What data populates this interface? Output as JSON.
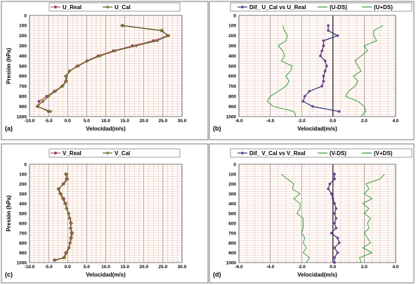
{
  "colors": {
    "background": "#ffffff",
    "border": "#555555",
    "grid": "#e8b4a0",
    "real": "#c0504d",
    "cal": "#4f6228",
    "dif_line": "#1f3a7a",
    "dif_marker": "#7b3f8a",
    "ds": "#3a9a3a",
    "zero_line": "#000000"
  },
  "chart_data": [
    {
      "id": "a",
      "type": "line",
      "panel_label": "(a)",
      "xlabel": "Velocidad(m/s)",
      "ylabel": "Presión (hPa)",
      "xlim": [
        -10,
        30
      ],
      "ylim": [
        0,
        1000
      ],
      "y_inverted": true,
      "x_ticks": [
        "-10.0",
        "-5.0",
        "0.0",
        "5.0",
        "10.0",
        "15.0",
        "20.0",
        "25.0",
        "30.0"
      ],
      "y_ticks": [
        "0",
        "100",
        "200",
        "300",
        "400",
        "500",
        "600",
        "700",
        "800",
        "900",
        "1000"
      ],
      "grid": true,
      "legend_position": "top",
      "series": [
        {
          "name": "U_Real",
          "role": "real",
          "x": [
            14.5,
            24.8,
            26.2,
            22.5,
            17.0,
            12.0,
            8.0,
            5.0,
            2.5,
            0.5,
            -0.5,
            -0.5,
            -1.5,
            -3.5,
            -5.5,
            -7.5,
            -7.8,
            -5.0
          ],
          "y": [
            100,
            150,
            200,
            250,
            300,
            350,
            400,
            450,
            500,
            550,
            600,
            650,
            700,
            750,
            800,
            850,
            900,
            950
          ]
        },
        {
          "name": "U_Cal",
          "role": "cal",
          "x": [
            14.2,
            24.5,
            26.5,
            23.5,
            18.0,
            12.5,
            8.5,
            5.2,
            2.8,
            0.5,
            -0.3,
            -0.3,
            -1.3,
            -3.2,
            -5.0,
            -6.5,
            -8.0,
            -4.5
          ],
          "y": [
            100,
            150,
            200,
            250,
            300,
            350,
            400,
            450,
            500,
            550,
            600,
            650,
            700,
            750,
            800,
            850,
            900,
            950
          ]
        }
      ]
    },
    {
      "id": "b",
      "type": "line",
      "panel_label": "(b)",
      "xlabel": "Velocidad(m/s)",
      "ylabel": "",
      "xlim": [
        -6,
        4
      ],
      "ylim": [
        0,
        1000
      ],
      "y_inverted": true,
      "x_ticks": [
        "-6.0",
        "-4.0",
        "-2.0",
        "0.0",
        "2.0",
        "4.0"
      ],
      "y_ticks": [
        "0",
        "100",
        "200",
        "300",
        "400",
        "500",
        "600",
        "700",
        "800",
        "900",
        "1000"
      ],
      "grid": true,
      "legend_position": "top",
      "series": [
        {
          "name": "Dif_ U_Cal vs U_Real",
          "role": "dif",
          "x": [
            -0.3,
            -0.3,
            0.3,
            -0.6,
            -0.6,
            -0.7,
            -0.8,
            -0.5,
            -0.4,
            -0.5,
            -0.6,
            -0.6,
            -0.7,
            -1.5,
            -1.8,
            -1.9,
            -1.3,
            0.4
          ],
          "y": [
            100,
            150,
            200,
            250,
            300,
            350,
            400,
            450,
            500,
            550,
            600,
            650,
            700,
            750,
            800,
            850,
            900,
            950
          ]
        },
        {
          "name": "(U-DS)",
          "role": "ds",
          "x": [
            -3.2,
            -3.1,
            -2.9,
            -3.0,
            -3.5,
            -3.2,
            -3.1,
            -3.3,
            -2.6,
            -2.7,
            -3.0,
            -2.8,
            -3.0,
            -3.5,
            -4.0,
            -4.2,
            -3.8,
            -2.5,
            -2.4,
            -2.4
          ],
          "y": [
            100,
            150,
            200,
            250,
            300,
            350,
            400,
            450,
            500,
            550,
            600,
            650,
            700,
            750,
            800,
            850,
            900,
            950,
            975,
            1000
          ]
        },
        {
          "name": "(U+DS)",
          "role": "ds",
          "x": [
            3.2,
            2.6,
            2.6,
            2.8,
            2.0,
            2.2,
            1.8,
            1.4,
            1.6,
            1.8,
            1.3,
            1.6,
            1.4,
            1.0,
            0.8,
            1.6,
            2.0,
            2.1,
            1.9,
            1.8
          ],
          "y": [
            100,
            150,
            200,
            250,
            300,
            350,
            400,
            450,
            500,
            550,
            600,
            650,
            700,
            750,
            800,
            850,
            900,
            950,
            975,
            1000
          ]
        }
      ]
    },
    {
      "id": "c",
      "type": "line",
      "panel_label": "(c)",
      "xlabel": "Velocidad(m/s)",
      "ylabel": "Presión (hPa)",
      "xlim": [
        -10,
        30
      ],
      "ylim": [
        0,
        1000
      ],
      "y_inverted": true,
      "x_ticks": [
        "-10.0",
        "-5.0",
        "0.0",
        "5.0",
        "10.0",
        "15.0",
        "20.0",
        "25.0",
        "30.0"
      ],
      "y_ticks": [
        "0",
        "100",
        "200",
        "300",
        "400",
        "500",
        "600",
        "700",
        "800",
        "900",
        "1000"
      ],
      "grid": true,
      "legend_position": "top",
      "series": [
        {
          "name": "V_Real",
          "role": "real",
          "x": [
            -0.5,
            -0.3,
            -1.2,
            -2.3,
            -1.8,
            -1.0,
            -0.5,
            -0.3,
            0.2,
            0.5,
            0.8,
            0.8,
            1.0,
            0.8,
            0.6,
            0.3,
            -0.5,
            -1.0,
            -3.5
          ],
          "y": [
            100,
            150,
            200,
            250,
            300,
            350,
            400,
            450,
            500,
            550,
            600,
            650,
            700,
            750,
            800,
            850,
            900,
            950,
            975
          ]
        },
        {
          "name": "V_Cal",
          "role": "cal",
          "x": [
            -0.2,
            0.0,
            -1.0,
            -2.5,
            -2.0,
            -1.3,
            -0.7,
            -0.2,
            0.3,
            0.6,
            1.0,
            0.7,
            1.3,
            1.0,
            0.7,
            0.4,
            -0.2,
            -0.8,
            -3.2
          ],
          "y": [
            100,
            150,
            200,
            250,
            300,
            350,
            400,
            450,
            500,
            550,
            600,
            650,
            700,
            750,
            800,
            850,
            900,
            950,
            975
          ]
        }
      ]
    },
    {
      "id": "d",
      "type": "line",
      "panel_label": "(d)",
      "xlabel": "Velocidad(m/s)",
      "ylabel": "",
      "xlim": [
        -6,
        4
      ],
      "ylim": [
        0,
        1000
      ],
      "y_inverted": true,
      "x_ticks": [
        "-6.0",
        "-4.0",
        "-2.0",
        "0.0",
        "2.0",
        "4.0"
      ],
      "y_ticks": [
        "0",
        "100",
        "200",
        "300",
        "400",
        "500",
        "600",
        "700",
        "800",
        "900",
        "1000"
      ],
      "grid": true,
      "legend_position": "top",
      "series": [
        {
          "name": "Dif_ V_Cal vs V_Real",
          "role": "dif",
          "x": [
            0.1,
            0.1,
            -0.2,
            -0.3,
            -0.1,
            0.0,
            0.1,
            0.2,
            0.1,
            0.2,
            0.1,
            0.2,
            -0.1,
            0.3,
            0.4,
            0.1,
            0.3,
            0.1,
            0.1
          ],
          "y": [
            100,
            150,
            200,
            250,
            300,
            350,
            400,
            450,
            500,
            550,
            600,
            650,
            700,
            750,
            800,
            850,
            900,
            950,
            1000
          ]
        },
        {
          "name": "(V-DS)",
          "role": "ds",
          "x": [
            -3.3,
            -2.9,
            -2.5,
            -2.6,
            -2.1,
            -2.5,
            -2.1,
            -2.1,
            -2.3,
            -1.9,
            -1.9,
            -1.9,
            -2.0,
            -1.8,
            -1.9,
            -1.7,
            -1.9,
            -1.5,
            -1.7
          ],
          "y": [
            100,
            150,
            200,
            250,
            300,
            350,
            400,
            450,
            500,
            550,
            600,
            650,
            700,
            750,
            800,
            850,
            900,
            950,
            1000
          ]
        },
        {
          "name": "(V+DS)",
          "role": "ds",
          "x": [
            3.3,
            3.0,
            2.1,
            2.3,
            2.0,
            2.5,
            1.9,
            2.3,
            2.0,
            2.4,
            2.2,
            2.3,
            2.0,
            2.2,
            2.4,
            1.9,
            2.5,
            1.7,
            1.8
          ],
          "y": [
            100,
            150,
            200,
            250,
            300,
            350,
            400,
            450,
            500,
            550,
            600,
            650,
            700,
            750,
            800,
            850,
            900,
            950,
            1000
          ]
        }
      ]
    }
  ]
}
